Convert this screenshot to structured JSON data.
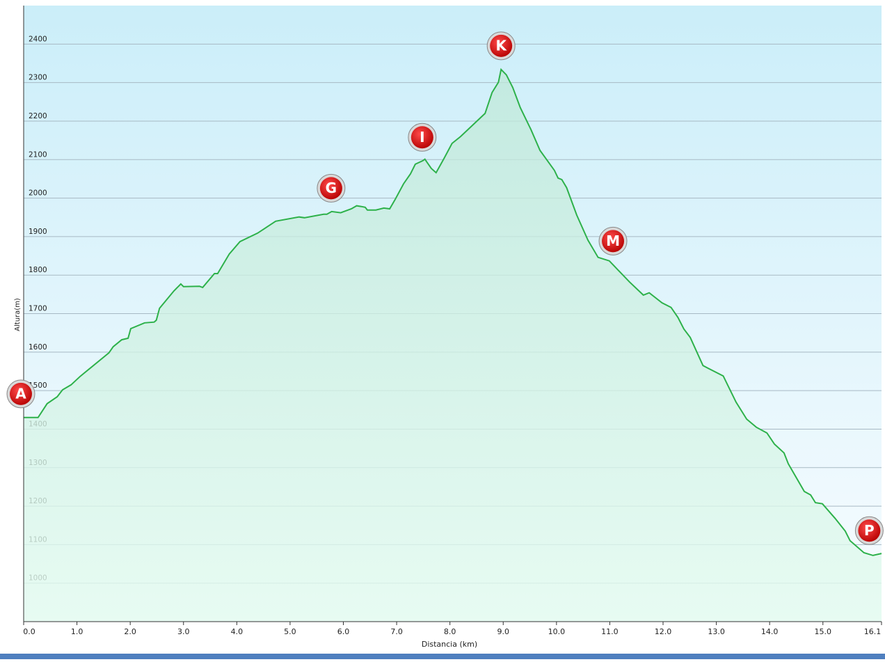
{
  "chart_data": {
    "type": "area",
    "xlabel": "Distancia (km)",
    "ylabel": "Altura(m)",
    "xlim": [
      0,
      16.1
    ],
    "ylim": [
      900,
      2500
    ],
    "xticks": [
      {
        "value": 0,
        "label": "0.0"
      },
      {
        "value": 1,
        "label": "1.0"
      },
      {
        "value": 2,
        "label": "2.0"
      },
      {
        "value": 3,
        "label": "3.0"
      },
      {
        "value": 4,
        "label": "4.0"
      },
      {
        "value": 5,
        "label": "5.0"
      },
      {
        "value": 6,
        "label": "6.0"
      },
      {
        "value": 7,
        "label": "7.0"
      },
      {
        "value": 8,
        "label": "8.0"
      },
      {
        "value": 9,
        "label": "9.0"
      },
      {
        "value": 10,
        "label": "10.0"
      },
      {
        "value": 11,
        "label": "11.0"
      },
      {
        "value": 12,
        "label": "12.0"
      },
      {
        "value": 13,
        "label": "13.0"
      },
      {
        "value": 14,
        "label": "14.0"
      },
      {
        "value": 15,
        "label": "15.0"
      },
      16.1
    ],
    "yticks": [
      1000,
      1100,
      1200,
      1300,
      1400,
      1500,
      1600,
      1700,
      1800,
      1900,
      2000,
      2100,
      2200,
      2300,
      2400
    ],
    "grid": true,
    "color": "#2db14a",
    "x": [
      0,
      0.27,
      0.44,
      0.63,
      0.73,
      0.89,
      1.06,
      1.6,
      1.68,
      1.84,
      1.96,
      2.01,
      2.27,
      2.45,
      2.49,
      2.55,
      2.82,
      2.95,
      3.0,
      3.3,
      3.36,
      3.58,
      3.64,
      3.86,
      4.06,
      4.39,
      4.73,
      5.17,
      5.27,
      5.63,
      5.69,
      5.78,
      5.95,
      6.15,
      6.25,
      6.34,
      6.41,
      6.45,
      6.61,
      6.76,
      6.87,
      6.97,
      7.13,
      7.26,
      7.35,
      7.49,
      7.53,
      7.57,
      7.65,
      7.74,
      7.89,
      8.04,
      8.2,
      8.66,
      8.79,
      8.91,
      8.96,
      9.06,
      9.18,
      9.32,
      9.52,
      9.69,
      9.96,
      10.03,
      10.1,
      10.19,
      10.38,
      10.59,
      10.78,
      10.99,
      11.37,
      11.63,
      11.74,
      11.98,
      12.15,
      12.28,
      12.39,
      12.51,
      12.75,
      13.13,
      13.37,
      13.57,
      13.75,
      13.95,
      14.09,
      14.27,
      14.35,
      14.65,
      14.77,
      14.86,
      14.99,
      15.23,
      15.42,
      15.51,
      15.77,
      15.94,
      16.1
    ],
    "values": [
      1430,
      1430,
      1466,
      1484,
      1502,
      1515,
      1537,
      1598,
      1614,
      1632,
      1636,
      1661,
      1676,
      1678,
      1683,
      1714,
      1759,
      1777,
      1770,
      1771,
      1768,
      1804,
      1804,
      1855,
      1887,
      1909,
      1940,
      1951,
      1949,
      1958,
      1958,
      1965,
      1962,
      1972,
      1980,
      1978,
      1976,
      1969,
      1969,
      1974,
      1972,
      1996,
      2037,
      2063,
      2088,
      2097,
      2101,
      2093,
      2077,
      2066,
      2103,
      2142,
      2160,
      2220,
      2274,
      2301,
      2334,
      2320,
      2287,
      2235,
      2178,
      2124,
      2072,
      2052,
      2048,
      2027,
      1956,
      1891,
      1846,
      1837,
      1782,
      1748,
      1754,
      1728,
      1716,
      1690,
      1660,
      1638,
      1565,
      1538,
      1470,
      1426,
      1405,
      1390,
      1361,
      1338,
      1310,
      1238,
      1229,
      1209,
      1206,
      1168,
      1135,
      1110,
      1079,
      1072,
      1077
    ],
    "markers": [
      {
        "label": "A",
        "x": 0
      },
      {
        "label": "G",
        "x": 5.77
      },
      {
        "label": "I",
        "x": 7.48
      },
      {
        "label": "K",
        "x": 8.96
      },
      {
        "label": "M",
        "x": 11.06
      },
      {
        "label": "P",
        "x": 15.87
      }
    ]
  }
}
